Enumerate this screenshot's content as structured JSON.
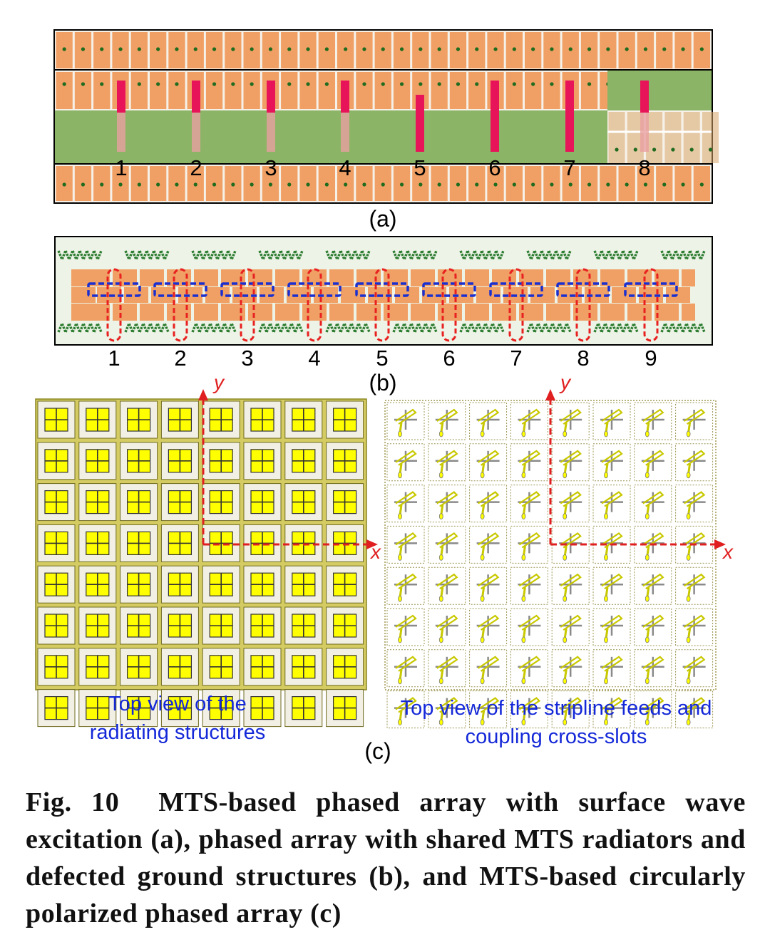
{
  "panel_a": {
    "label": "(a)",
    "port_numbers": [
      "1",
      "2",
      "3",
      "4",
      "5",
      "6",
      "7",
      "8"
    ]
  },
  "panel_b": {
    "label": "(b)",
    "port_numbers": [
      "1",
      "2",
      "3",
      "4",
      "5",
      "6",
      "7",
      "8",
      "9"
    ]
  },
  "panel_c": {
    "label": "(c)",
    "left_caption": [
      "Top view of the",
      "radiating structures"
    ],
    "right_caption": [
      "Top view of the stripline feeds and",
      "coupling cross-slots"
    ],
    "axis_x": "x",
    "axis_y": "y"
  },
  "caption": {
    "text": "Fig. 10  MTS-based phased array with surface wave excitation (a), phased array with shared MTS radiators and defected ground structures (b), and MTS-based circularly polarized phased array (c)"
  },
  "colors": {
    "orange": "#f0a064",
    "green": "#8cb466",
    "red_feed": "#e8145a",
    "dark_green": "#2e7d32",
    "yellow": "#ffff00",
    "axis_red": "#e02020",
    "blue_text": "#1428d8"
  }
}
